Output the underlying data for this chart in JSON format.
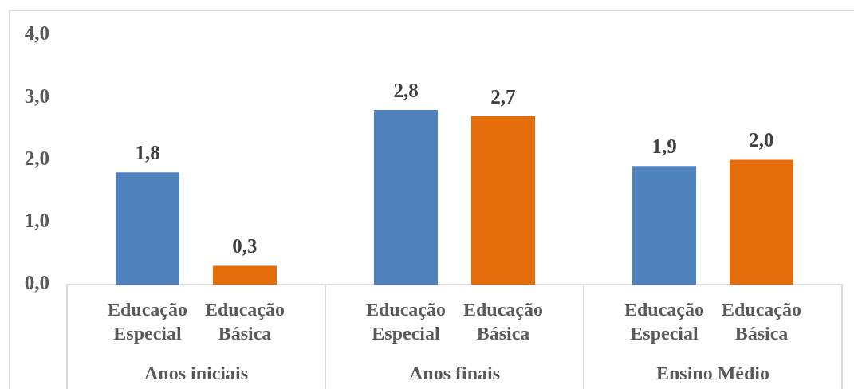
{
  "chart_data": {
    "type": "bar",
    "categories": [
      "Anos iniciais",
      "Anos finais",
      "Ensino Médio"
    ],
    "series": [
      {
        "name": "Educação Especial",
        "color": "#4f81bd",
        "values": [
          1.8,
          2.8,
          1.9
        ],
        "value_labels": [
          "1,8",
          "2,8",
          "1,9"
        ]
      },
      {
        "name": "Educação Básica",
        "color": "#e46c0a",
        "values": [
          0.3,
          2.7,
          2.0
        ],
        "value_labels": [
          "0,3",
          "2,7",
          "2,0"
        ]
      }
    ],
    "ylim": [
      0,
      4
    ],
    "yticks": [
      {
        "value": 0,
        "label": "0,0"
      },
      {
        "value": 1,
        "label": "1,0"
      },
      {
        "value": 2,
        "label": "2,0"
      },
      {
        "value": 3,
        "label": "3,0"
      },
      {
        "value": 4,
        "label": "4,0"
      }
    ]
  }
}
